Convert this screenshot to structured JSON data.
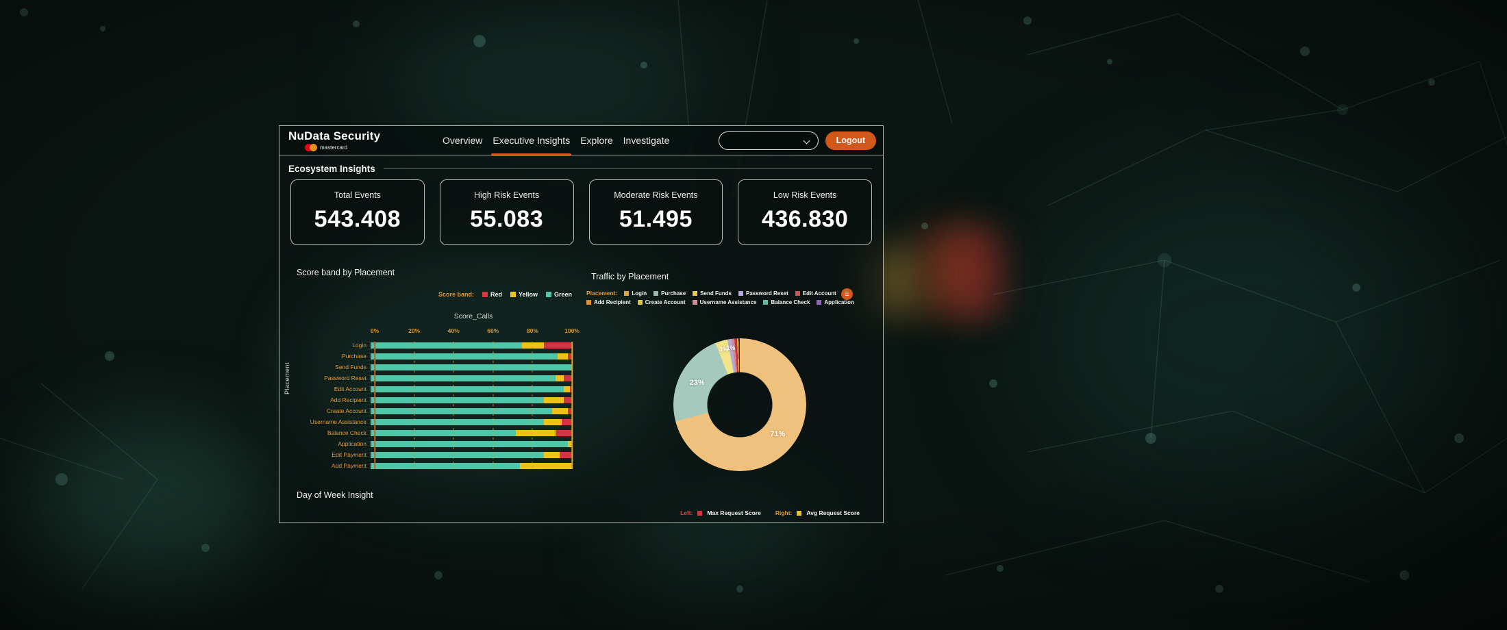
{
  "accent_color": "#d2571b",
  "header": {
    "brand": "NuData Security",
    "brand_logo": "mastercard",
    "nav": [
      {
        "label": "Overview",
        "active": false
      },
      {
        "label": "Executive Insights",
        "active": true
      },
      {
        "label": "Explore",
        "active": false
      },
      {
        "label": "Investigate",
        "active": false
      }
    ],
    "filter_value": "",
    "logout": "Logout"
  },
  "ecosystem": {
    "title": "Ecosystem Insights",
    "kpis": [
      {
        "label": "Total Events",
        "value": "543.408"
      },
      {
        "label": "High Risk Events",
        "value": "55.083"
      },
      {
        "label": "Moderate Risk Events",
        "value": "51.495"
      },
      {
        "label": "Low Risk Events",
        "value": "436.830"
      }
    ]
  },
  "chart_data": [
    {
      "type": "bar",
      "orientation": "horizontal",
      "stacked": true,
      "title": "Score band by Placement",
      "axis_title": "Score_Calls",
      "ylabel": "Placement",
      "legend_label": "Score band:",
      "legend_position": "top-right",
      "x_ticks": [
        "0%",
        "20%",
        "40%",
        "60%",
        "80%",
        "100%"
      ],
      "xlim": [
        0,
        100
      ],
      "grid": true,
      "categories": [
        "Login",
        "Purchase",
        "Send Funds",
        "Password Reset",
        "Edit Account",
        "Add Recipient",
        "Create Account",
        "Username Assistance",
        "Balance Check",
        "Application",
        "Edit Payment",
        "Add Payment"
      ],
      "series": [
        {
          "name": "Green",
          "color": "#4fc7a6",
          "values": [
            75,
            93,
            100,
            92,
            96,
            86,
            90,
            86,
            72,
            98,
            86,
            74
          ]
        },
        {
          "name": "Yellow",
          "color": "#eec21d",
          "values": [
            11,
            5,
            0,
            4,
            3,
            10,
            8,
            9,
            20,
            2,
            8,
            26
          ]
        },
        {
          "name": "Red",
          "color": "#cc3743",
          "values": [
            14,
            2,
            0,
            4,
            1,
            4,
            2,
            5,
            8,
            0,
            6,
            0
          ]
        }
      ],
      "legend": [
        {
          "name": "Red",
          "color": "#cf3a45"
        },
        {
          "name": "Yellow",
          "color": "#eec21d"
        },
        {
          "name": "Green",
          "color": "#4fc7a6"
        }
      ]
    },
    {
      "type": "pie",
      "subtype": "donut",
      "title": "Traffic by Placement",
      "legend_label": "Placement:",
      "legend_position": "top",
      "legend": [
        {
          "name": "Login",
          "color": "#e2a33c"
        },
        {
          "name": "Purchase",
          "color": "#9fb7ad"
        },
        {
          "name": "Send Funds",
          "color": "#e5c84a"
        },
        {
          "name": "Password Reset",
          "color": "#b4a9d5"
        },
        {
          "name": "Edit Account",
          "color": "#cf5257"
        },
        {
          "name": "Add Recipient",
          "color": "#e0902e"
        },
        {
          "name": "Create Account",
          "color": "#dfc33c"
        },
        {
          "name": "Username Assistance",
          "color": "#d4878f"
        },
        {
          "name": "Balance Check",
          "color": "#5fb8a1"
        },
        {
          "name": "Application",
          "color": "#8e68b5"
        }
      ],
      "slices": [
        {
          "name": "Login",
          "value": 71,
          "color": "#efc17d",
          "label": "71%"
        },
        {
          "name": "Purchase",
          "value": 23,
          "color": "#a6c9bd",
          "label": "23%"
        },
        {
          "name": "Send Funds",
          "value": 3,
          "color": "#f2e488",
          "label": "3%"
        },
        {
          "name": "Password Reset",
          "value": 1,
          "color": "#b4a9d5",
          "label": "1%"
        },
        {
          "name": "Username Assistance",
          "value": 0.7,
          "color": "#d4878f",
          "label": ""
        },
        {
          "name": "Edit Account",
          "value": 0.6,
          "color": "#c2333d",
          "label": ""
        },
        {
          "name": "Add Recipient",
          "value": 0.4,
          "color": "#e2a12b",
          "label": ""
        },
        {
          "name": "Application",
          "value": 0.3,
          "color": "#26211b",
          "label": ""
        }
      ]
    }
  ],
  "day_of_week": {
    "title": "Day of Week Insight",
    "legend": {
      "left_label": "Left:",
      "left_name": "Max Request Score",
      "left_color": "#cf3a45",
      "right_label": "Right:",
      "right_name": "Avg Request Score",
      "right_color": "#eec21d"
    }
  }
}
